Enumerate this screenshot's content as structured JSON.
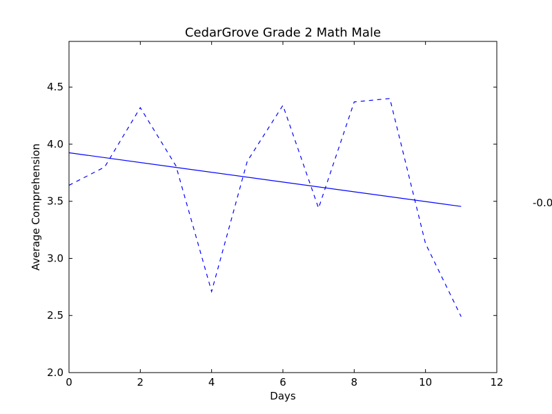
{
  "chart_data": {
    "type": "line",
    "title": "CedarGrove Grade 2 Math Male",
    "xlabel": "Days",
    "ylabel": "Average Comprehension",
    "xlim": [
      0,
      12
    ],
    "ylim": [
      2.0,
      4.9
    ],
    "xticks": [
      "0",
      "2",
      "4",
      "6",
      "8",
      "10",
      "12"
    ],
    "yticks": [
      "2.0",
      "2.5",
      "3.0",
      "3.5",
      "4.0",
      "4.5"
    ],
    "grid": false,
    "color": "#0000ff",
    "series": [
      {
        "style": "dashed",
        "x": [
          0,
          1,
          2,
          3,
          4,
          5,
          6,
          7,
          8,
          9,
          10,
          11
        ],
        "y": [
          3.64,
          3.8,
          4.32,
          3.81,
          2.71,
          3.85,
          4.34,
          3.44,
          4.37,
          4.4,
          3.13,
          2.49
        ]
      },
      {
        "style": "solid",
        "x": [
          0,
          11
        ],
        "y": [
          3.925,
          3.455
        ]
      }
    ],
    "annotation": "-0.0"
  }
}
